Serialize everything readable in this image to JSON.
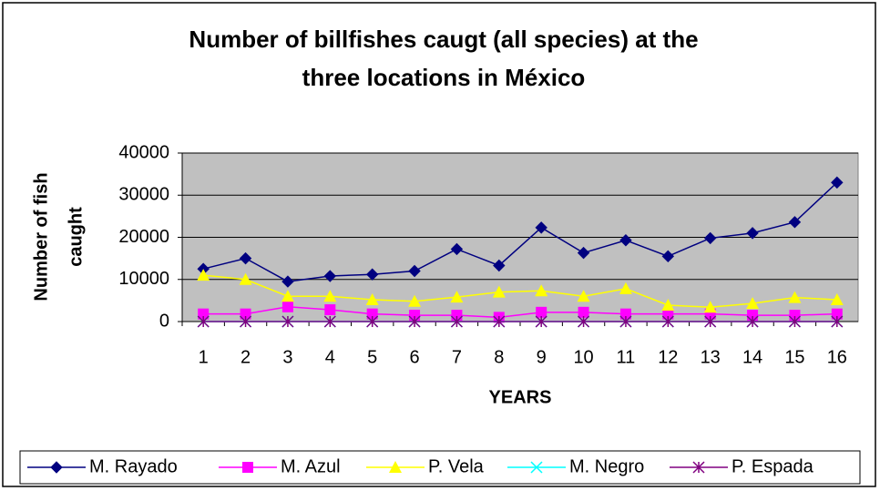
{
  "chart_data": {
    "type": "line",
    "title": [
      "Number of billfishes caugt (all species) at the",
      "three locations in México"
    ],
    "x_label": "YEARS",
    "y_label": [
      "Number of fish",
      "caught"
    ],
    "categories": [
      "1",
      "2",
      "3",
      "4",
      "5",
      "6",
      "7",
      "8",
      "9",
      "10",
      "11",
      "12",
      "13",
      "14",
      "15",
      "16"
    ],
    "series": [
      {
        "name": "M. Rayado",
        "color": "#000080",
        "marker": "diamond",
        "values": [
          12500,
          15000,
          9500,
          10800,
          11200,
          12000,
          17200,
          13300,
          22300,
          16300,
          19300,
          15500,
          19800,
          21000,
          23600,
          33000
        ]
      },
      {
        "name": "M. Azul",
        "color": "#ff00ff",
        "marker": "square",
        "values": [
          1800,
          1800,
          3500,
          2800,
          1800,
          1500,
          1500,
          1000,
          2200,
          2200,
          1800,
          1800,
          1800,
          1500,
          1500,
          1800
        ]
      },
      {
        "name": "P. Vela",
        "color": "#ffff00",
        "marker": "triangle",
        "values": [
          11000,
          10000,
          6000,
          6000,
          5200,
          4800,
          5800,
          7000,
          7300,
          6000,
          7800,
          3900,
          3400,
          4300,
          5700,
          5200
        ]
      },
      {
        "name": "M. Negro",
        "color": "#00ffff",
        "marker": "x",
        "values": [
          0,
          0,
          0,
          0,
          0,
          0,
          0,
          0,
          0,
          0,
          0,
          0,
          0,
          0,
          0,
          0
        ]
      },
      {
        "name": "P. Espada",
        "color": "#800080",
        "marker": "star",
        "values": [
          0,
          0,
          0,
          0,
          0,
          0,
          0,
          0,
          0,
          0,
          0,
          0,
          0,
          0,
          0,
          0
        ]
      }
    ],
    "ylim": [
      0,
      40000
    ],
    "yticks": [
      0,
      10000,
      20000,
      30000,
      40000
    ],
    "grid": true,
    "legend": "bottom"
  }
}
